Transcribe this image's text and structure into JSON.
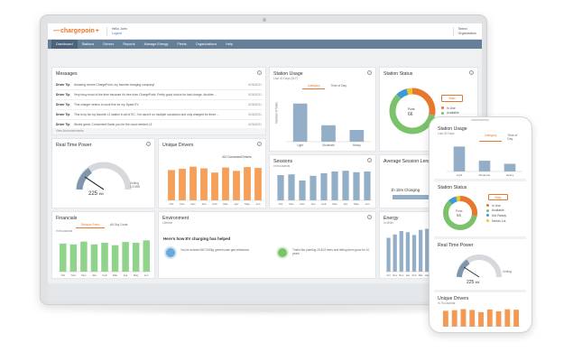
{
  "header": {
    "logo": "chargepoin",
    "logo_suffix": "+",
    "user_greeting": "Hello John",
    "user_action": "Logout",
    "org_line1": "Select",
    "org_line2": "Organization"
  },
  "nav": [
    "Dashboard",
    "Stations",
    "Drivers",
    "Reports",
    "Manage Energy",
    "Fleets",
    "Organizations",
    "Help"
  ],
  "messages": {
    "title": "Messages",
    "items": [
      {
        "who": "Driver Tip",
        "msg": "Amazing moves ChargePoint, my favorite charging company!",
        "date": "5/26/2021"
      },
      {
        "who": "Driver Tip",
        "msg": "Very busy most of the time because it's free from ChargePoint. Pretty good choice for fast charge. Another ...",
        "date": "5/26/2021"
      },
      {
        "who": "Driver Tip",
        "msg": "This charger seems to work fine for my Spark EV",
        "date": "5/26/2021"
      },
      {
        "who": "Driver Tip",
        "msg": "This is by far my favorite L2 station in all of KC. I've used it on multiple occasions and only charged for three ...",
        "date": "5/26/2021"
      },
      {
        "who": "Driver Tip",
        "msg": "Works great. Convenient thank you for the most needed L3",
        "date": "5/26/2021"
      }
    ],
    "footer": "View Announcements"
  },
  "station_usage": {
    "title": "Station Usage",
    "subtitle": "Last 30 Days (M-F)",
    "tabs": [
      "Category",
      "Time of Day"
    ],
    "ylabel": "Number of Visits"
  },
  "station_status": {
    "title": "Station Status",
    "donut_label": "Ports",
    "donut_value": "66",
    "button": "Map",
    "legend": [
      "In Use",
      "Available",
      "Not Ready",
      "Needs Lot"
    ]
  },
  "real_time_power": {
    "title": "Real Time Power",
    "value": "225",
    "unit": "kW",
    "ceiling_label": "Ceiling",
    "ceiling_value": "1.5 MW"
  },
  "unique_drivers": {
    "title": "Unique Drivers",
    "note": "412 Connected Drivers"
  },
  "sessions": {
    "title": "Sessions",
    "subtitle": "In thousands"
  },
  "avg_session": {
    "title": "Average Session Length",
    "note": "1h 10m Charging"
  },
  "financials": {
    "title": "Financials",
    "tabs": [
      "Session Fees",
      "All Org Costs"
    ],
    "subtitle": "In thousands"
  },
  "environment": {
    "title": "Environment",
    "subtitle": "Lifetime",
    "heading": "Here's how EV charging has helped",
    "item1": "You've avoided 567,000kg greenhouse gas emissions",
    "item2": "That's like planting 26,813 trees and letting them grow for 10 years"
  },
  "energy": {
    "title": "Energy",
    "subtitle": "In MWh"
  },
  "phone": {
    "station_usage_title": "Station Usage",
    "station_usage_sub": "Last 30 Days",
    "station_status_title": "Station Status",
    "rtp_title": "Real Time Power",
    "rtp_value": "225",
    "rtp_unit": "kW",
    "unique_title": "Unique Drivers",
    "unique_sub": "In Thousands"
  },
  "chart_data": [
    {
      "type": "bar",
      "name": "station_usage",
      "categories": [
        "Light",
        "Moderate",
        "Heavy"
      ],
      "values": [
        65,
        28,
        20
      ],
      "ylabel": "Number of Visits"
    },
    {
      "type": "pie",
      "name": "station_status",
      "categories": [
        "In Use",
        "Available",
        "Not Ready",
        "Needs Lot"
      ],
      "values": [
        28,
        60,
        8,
        4
      ],
      "colors": [
        "#e8772e",
        "#7bc26b",
        "#3a9bd8",
        "#f2c230"
      ]
    },
    {
      "type": "bar",
      "name": "unique_drivers",
      "categories": [
        "Oct",
        "Nov",
        "Dec",
        "Jan",
        "Feb",
        "Mar",
        "Apr",
        "May",
        "Jun"
      ],
      "values": [
        72,
        75,
        80,
        76,
        66,
        78,
        70,
        79,
        77
      ],
      "colors": [
        "#f5a05a"
      ]
    },
    {
      "type": "bar",
      "name": "sessions",
      "categories": [
        "Oct",
        "Nov",
        "Dec",
        "Jan",
        "Feb",
        "Mar",
        "Apr",
        "May",
        "Jun"
      ],
      "values": [
        70,
        72,
        55,
        68,
        75,
        80,
        82,
        78,
        80
      ],
      "colors": [
        "#93aec7"
      ]
    },
    {
      "type": "bar",
      "name": "financials",
      "categories": [
        "Oct",
        "Nov",
        "Dec",
        "Jan",
        "Feb",
        "Mar",
        "Apr",
        "May",
        "Jun"
      ],
      "values": [
        70,
        68,
        75,
        68,
        72,
        66,
        74,
        72,
        78
      ],
      "colors": [
        "#8fd48a"
      ]
    },
    {
      "type": "bar",
      "name": "energy",
      "categories": [
        "Oct",
        "Nov",
        "Dec",
        "Jan",
        "Feb",
        "Mar",
        "Apr",
        "May",
        "Jun"
      ],
      "values": [
        60,
        66,
        72,
        70,
        65,
        74,
        76,
        60,
        70
      ],
      "colors": [
        "#93aec7"
      ]
    }
  ]
}
